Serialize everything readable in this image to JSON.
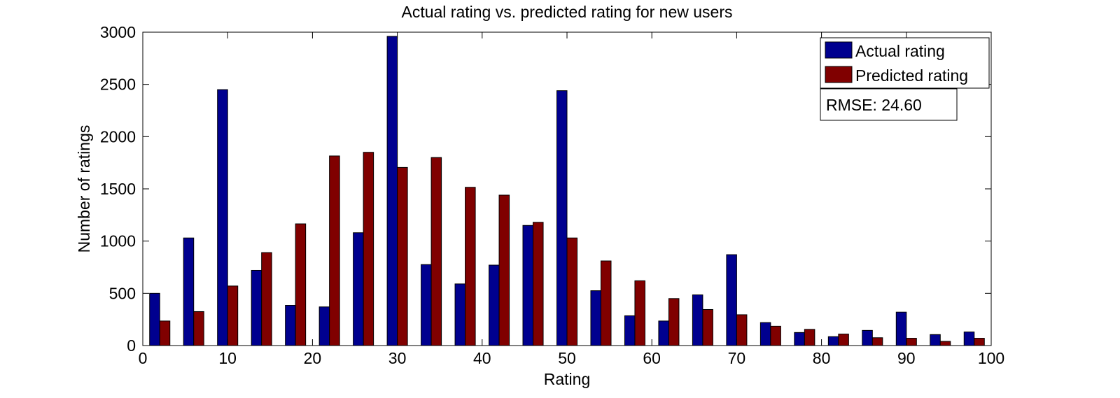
{
  "chart_data": {
    "type": "bar",
    "title": "Actual rating vs. predicted rating for new users",
    "xlabel": "Rating",
    "ylabel": "Number of ratings",
    "xlim": [
      0,
      100
    ],
    "ylim": [
      0,
      3000
    ],
    "xticks": [
      0,
      10,
      20,
      30,
      40,
      50,
      60,
      70,
      80,
      90,
      100
    ],
    "yticks": [
      0,
      500,
      1000,
      1500,
      2000,
      2500,
      3000
    ],
    "x": [
      2,
      6,
      10,
      14,
      18,
      22,
      26,
      30,
      34,
      38,
      42,
      46,
      50,
      54,
      58,
      62,
      66,
      70,
      74,
      78,
      82,
      86,
      90,
      94,
      98
    ],
    "series": [
      {
        "name": "Actual rating",
        "color": "#00008f",
        "values": [
          500,
          1030,
          2450,
          720,
          385,
          370,
          1080,
          2960,
          775,
          590,
          770,
          1150,
          2440,
          525,
          285,
          235,
          485,
          870,
          220,
          125,
          85,
          145,
          320,
          105,
          130
        ]
      },
      {
        "name": "Predicted rating",
        "color": "#800000",
        "values": [
          235,
          325,
          570,
          890,
          1165,
          1815,
          1850,
          1705,
          1800,
          1515,
          1440,
          1180,
          1030,
          810,
          620,
          450,
          345,
          295,
          185,
          155,
          110,
          75,
          70,
          40,
          70
        ]
      }
    ],
    "legend_position": "top-right",
    "annotation": "RMSE: 24.60",
    "grid": false
  }
}
